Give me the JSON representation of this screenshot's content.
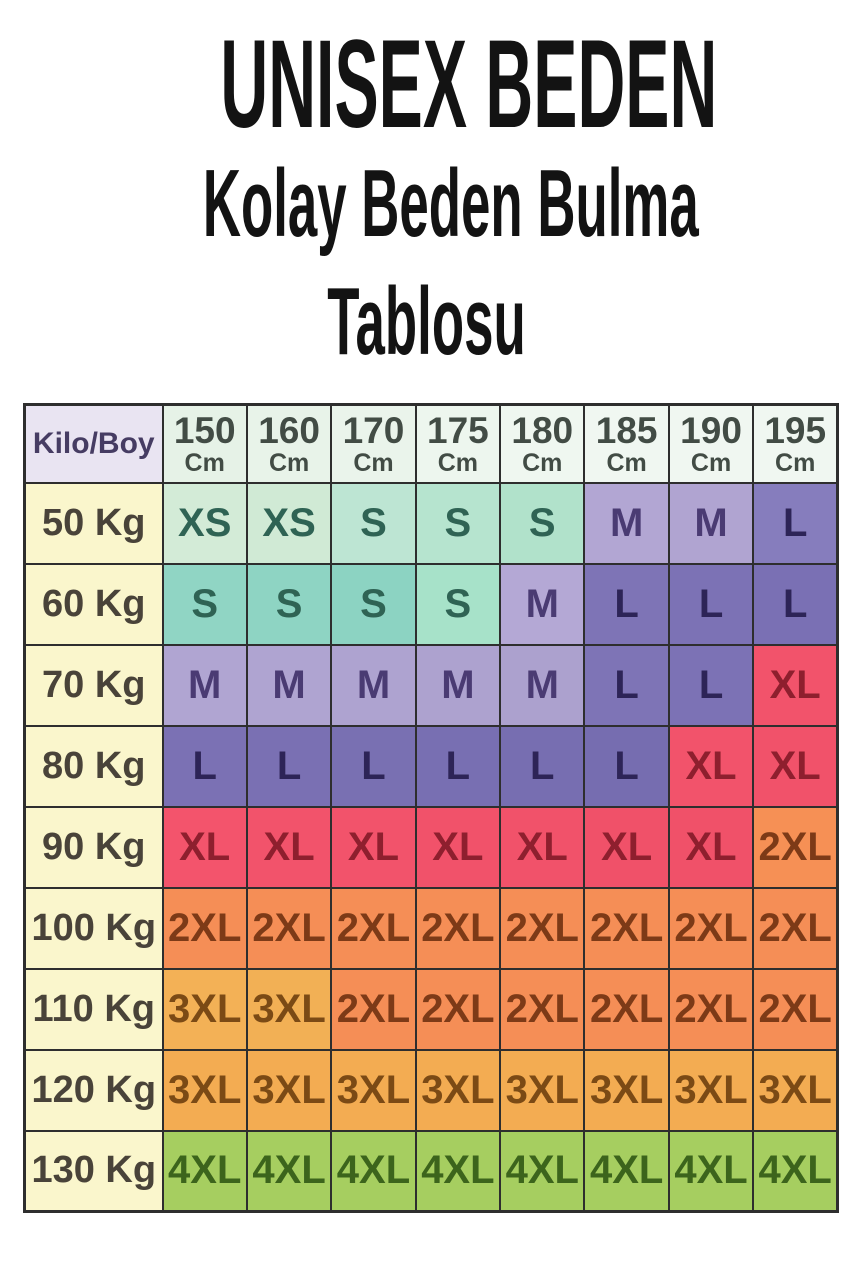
{
  "title": {
    "line1": "UNISEX BEDEN",
    "line2": "Kolay Beden Bulma",
    "line3": "Tablosu"
  },
  "table": {
    "corner": {
      "label": "Kilo/Boy",
      "bg": "#e9e4f2",
      "fg": "#463c63"
    },
    "header_fg": "#424c45",
    "row_label_bg": "#faf6cc",
    "row_label_fg": "#494339",
    "border_color": "#2e2e2e",
    "columns": [
      {
        "value": "150",
        "unit": "Cm",
        "bg": "#e6f2e7"
      },
      {
        "value": "160",
        "unit": "Cm",
        "bg": "#e8f3e9"
      },
      {
        "value": "170",
        "unit": "Cm",
        "bg": "#eaf4eb"
      },
      {
        "value": "175",
        "unit": "Cm",
        "bg": "#edf6ee"
      },
      {
        "value": "180",
        "unit": "Cm",
        "bg": "#eff7f0"
      },
      {
        "value": "185",
        "unit": "Cm",
        "bg": "#f0f7f1"
      },
      {
        "value": "190",
        "unit": "Cm",
        "bg": "#f0f7f1"
      },
      {
        "value": "195",
        "unit": "Cm",
        "bg": "#f0f7f1"
      }
    ],
    "rows": [
      {
        "label": "50 Kg",
        "cells": [
          [
            "XS",
            "#d3ebd7",
            "#2f6354"
          ],
          [
            "XS",
            "#d0ead5",
            "#2f6354"
          ],
          [
            "S",
            "#bde5d3",
            "#2f6354"
          ],
          [
            "S",
            "#b6e4cf",
            "#2f6354"
          ],
          [
            "S",
            "#b1e2cb",
            "#2f6354"
          ],
          [
            "M",
            "#b2a6d3",
            "#4a3b73"
          ],
          [
            "M",
            "#b0a4d1",
            "#4a3b73"
          ],
          [
            "L",
            "#867dbd",
            "#2d2457"
          ]
        ]
      },
      {
        "label": "60 Kg",
        "cells": [
          [
            "S",
            "#90d5c4",
            "#2f6354"
          ],
          [
            "S",
            "#8ed4c3",
            "#2f6354"
          ],
          [
            "S",
            "#8cd3c2",
            "#2f6354"
          ],
          [
            "S",
            "#a7e2c9",
            "#2f6354"
          ],
          [
            "M",
            "#b4a8d5",
            "#4a3b73"
          ],
          [
            "L",
            "#7e74b6",
            "#2d2457"
          ],
          [
            "L",
            "#7c72b5",
            "#2d2457"
          ],
          [
            "L",
            "#7a70b4",
            "#2d2457"
          ]
        ]
      },
      {
        "label": "70 Kg",
        "cells": [
          [
            "M",
            "#b0a5d2",
            "#4a3b73"
          ],
          [
            "M",
            "#afa4d1",
            "#4a3b73"
          ],
          [
            "M",
            "#aea3d0",
            "#4a3b73"
          ],
          [
            "M",
            "#ada2cf",
            "#4a3b73"
          ],
          [
            "M",
            "#aca1ce",
            "#4a3b73"
          ],
          [
            "L",
            "#7e74b6",
            "#2d2457"
          ],
          [
            "L",
            "#7c72b5",
            "#2d2457"
          ],
          [
            "XL",
            "#f2536b",
            "#8e1f2e"
          ]
        ]
      },
      {
        "label": "80 Kg",
        "cells": [
          [
            "L",
            "#7b71b4",
            "#2d2457"
          ],
          [
            "L",
            "#7a70b3",
            "#2d2457"
          ],
          [
            "L",
            "#7970b2",
            "#2d2457"
          ],
          [
            "L",
            "#786fb2",
            "#2d2457"
          ],
          [
            "L",
            "#776eb1",
            "#2d2457"
          ],
          [
            "L",
            "#766db0",
            "#2d2457"
          ],
          [
            "XL",
            "#f2536b",
            "#8e1f2e"
          ],
          [
            "XL",
            "#f1526a",
            "#8e1f2e"
          ]
        ]
      },
      {
        "label": "90 Kg",
        "cells": [
          [
            "XL",
            "#f3546c",
            "#8e1f2e"
          ],
          [
            "XL",
            "#f2536b",
            "#8e1f2e"
          ],
          [
            "XL",
            "#f2536b",
            "#8e1f2e"
          ],
          [
            "XL",
            "#f1526a",
            "#8e1f2e"
          ],
          [
            "XL",
            "#f1526a",
            "#8e1f2e"
          ],
          [
            "XL",
            "#f05169",
            "#8e1f2e"
          ],
          [
            "XL",
            "#f05169",
            "#8e1f2e"
          ],
          [
            "2XL",
            "#f69055",
            "#7d3a17"
          ]
        ]
      },
      {
        "label": "100 Kg",
        "cells": [
          [
            "2XL",
            "#f58e56",
            "#7d3a17"
          ],
          [
            "2XL",
            "#f58e56",
            "#7d3a17"
          ],
          [
            "2XL",
            "#f58e56",
            "#7d3a17"
          ],
          [
            "2XL",
            "#f58e56",
            "#7d3a17"
          ],
          [
            "2XL",
            "#f58e56",
            "#7d3a17"
          ],
          [
            "2XL",
            "#f58e56",
            "#7d3a17"
          ],
          [
            "2XL",
            "#f58e56",
            "#7d3a17"
          ],
          [
            "2XL",
            "#f58e56",
            "#7d3a17"
          ]
        ]
      },
      {
        "label": "110 Kg",
        "cells": [
          [
            "3XL",
            "#f3b156",
            "#7b4a15"
          ],
          [
            "3XL",
            "#f2b055",
            "#7b4a15"
          ],
          [
            "2XL",
            "#f58e56",
            "#7d3a17"
          ],
          [
            "2XL",
            "#f58e56",
            "#7d3a17"
          ],
          [
            "2XL",
            "#f58e56",
            "#7d3a17"
          ],
          [
            "2XL",
            "#f58e56",
            "#7d3a17"
          ],
          [
            "2XL",
            "#f58e56",
            "#7d3a17"
          ],
          [
            "2XL",
            "#f58e56",
            "#7d3a17"
          ]
        ]
      },
      {
        "label": "120 Kg",
        "cells": [
          [
            "3XL",
            "#f3ac52",
            "#7b4a15"
          ],
          [
            "3XL",
            "#f3ac52",
            "#7b4a15"
          ],
          [
            "3XL",
            "#f3ac52",
            "#7b4a15"
          ],
          [
            "3XL",
            "#f3ac52",
            "#7b4a15"
          ],
          [
            "3XL",
            "#f3ac52",
            "#7b4a15"
          ],
          [
            "3XL",
            "#f3ac52",
            "#7b4a15"
          ],
          [
            "3XL",
            "#f3ac52",
            "#7b4a15"
          ],
          [
            "3XL",
            "#f3ac52",
            "#7b4a15"
          ]
        ]
      },
      {
        "label": "130 Kg",
        "cells": [
          [
            "4XL",
            "#a6ce60",
            "#3c641c"
          ],
          [
            "4XL",
            "#a6ce60",
            "#3c641c"
          ],
          [
            "4XL",
            "#a6ce60",
            "#3c641c"
          ],
          [
            "4XL",
            "#a6ce60",
            "#3c641c"
          ],
          [
            "4XL",
            "#a6ce60",
            "#3c641c"
          ],
          [
            "4XL",
            "#a6ce60",
            "#3c641c"
          ],
          [
            "4XL",
            "#a6ce60",
            "#3c641c"
          ],
          [
            "4XL",
            "#a6ce60",
            "#3c641c"
          ]
        ]
      }
    ]
  },
  "chart_data": {
    "type": "table",
    "title": "UNISEX BEDEN — Kolay Beden Bulma Tablosu",
    "x_label": "Boy (Cm)",
    "y_label": "Kilo (Kg)",
    "x_categories_cm": [
      150,
      160,
      170,
      175,
      180,
      185,
      190,
      195
    ],
    "y_categories_kg": [
      50,
      60,
      70,
      80,
      90,
      100,
      110,
      120,
      130
    ],
    "values": [
      [
        "XS",
        "XS",
        "S",
        "S",
        "S",
        "M",
        "M",
        "L"
      ],
      [
        "S",
        "S",
        "S",
        "S",
        "M",
        "L",
        "L",
        "L"
      ],
      [
        "M",
        "M",
        "M",
        "M",
        "M",
        "L",
        "L",
        "XL"
      ],
      [
        "L",
        "L",
        "L",
        "L",
        "L",
        "L",
        "XL",
        "XL"
      ],
      [
        "XL",
        "XL",
        "XL",
        "XL",
        "XL",
        "XL",
        "XL",
        "2XL"
      ],
      [
        "2XL",
        "2XL",
        "2XL",
        "2XL",
        "2XL",
        "2XL",
        "2XL",
        "2XL"
      ],
      [
        "3XL",
        "3XL",
        "2XL",
        "2XL",
        "2XL",
        "2XL",
        "2XL",
        "2XL"
      ],
      [
        "3XL",
        "3XL",
        "3XL",
        "3XL",
        "3XL",
        "3XL",
        "3XL",
        "3XL"
      ],
      [
        "4XL",
        "4XL",
        "4XL",
        "4XL",
        "4XL",
        "4XL",
        "4XL",
        "4XL"
      ]
    ],
    "legend_colors": {
      "XS_S_green": "#bde5d3",
      "S_teal": "#8ed4c3",
      "M_light_purple": "#aea3d0",
      "L_purple": "#7a70b4",
      "XL_red": "#f2536b",
      "2XL_orange": "#f58e56",
      "3XL_amber": "#f3ac52",
      "4XL_green": "#a6ce60"
    }
  }
}
